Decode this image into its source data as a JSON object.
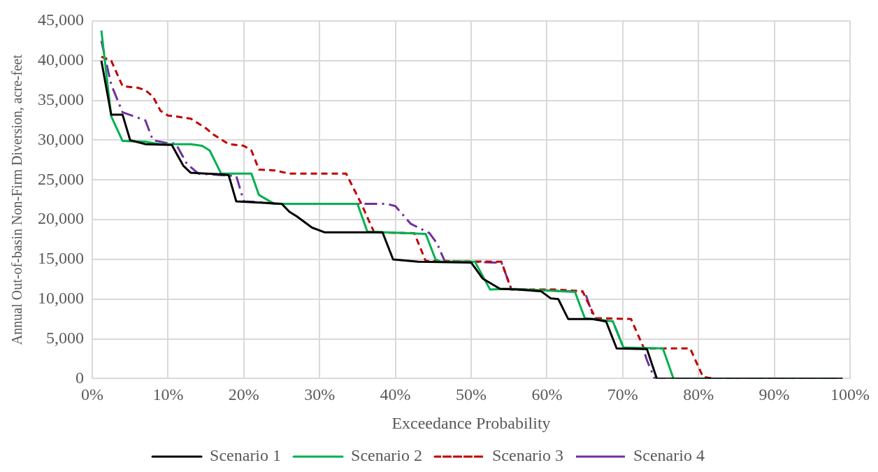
{
  "chart_data": {
    "type": "line",
    "xlabel": "Exceedance Probability",
    "ylabel": "Annual Out-of-basin Non-Firm Diversion, acre-feet",
    "xlim": [
      0,
      100
    ],
    "xticks": [
      {
        "value": 0,
        "label": "0%"
      },
      {
        "value": 10,
        "label": "10%"
      },
      {
        "value": 20,
        "label": "20%"
      },
      {
        "value": 30,
        "label": "30%"
      },
      {
        "value": 40,
        "label": "40%"
      },
      {
        "value": 50,
        "label": "50%"
      },
      {
        "value": 60,
        "label": "60%"
      },
      {
        "value": 70,
        "label": "70%"
      },
      {
        "value": 80,
        "label": "80%"
      },
      {
        "value": 90,
        "label": "90%"
      },
      {
        "value": 100,
        "label": "100%"
      }
    ],
    "ylim": [
      0,
      45000
    ],
    "yticks": [
      {
        "value": 0,
        "label": "0"
      },
      {
        "value": 5000,
        "label": "5,000"
      },
      {
        "value": 10000,
        "label": "10,000"
      },
      {
        "value": 15000,
        "label": "15,000"
      },
      {
        "value": 20000,
        "label": "20,000"
      },
      {
        "value": 25000,
        "label": "25,000"
      },
      {
        "value": 30000,
        "label": "30,000"
      },
      {
        "value": 35000,
        "label": "35,000"
      },
      {
        "value": 40000,
        "label": "40,000"
      },
      {
        "value": 45000,
        "label": "45,000"
      }
    ],
    "grid": true,
    "legend": "bottom",
    "marker": "none",
    "series": [
      {
        "name": "Scenario 1",
        "color": "#000000",
        "line_style": "solid",
        "x": [
          1.2,
          2.5,
          4,
          5,
          7,
          10.5,
          12,
          13,
          15,
          17,
          18,
          19,
          23,
          25,
          26,
          27,
          29,
          30.7,
          38.3,
          39.7,
          43,
          50,
          51.5,
          53.8,
          56,
          59.2,
          60.5,
          61.5,
          62.8,
          66,
          67.8,
          69.2,
          73.2,
          74.5,
          99
        ],
        "values": [
          40000,
          33200,
          33200,
          30000,
          29500,
          29400,
          26800,
          25900,
          25800,
          25700,
          25600,
          22300,
          22100,
          22000,
          21000,
          20400,
          19000,
          18400,
          18400,
          15000,
          14700,
          14600,
          12600,
          11300,
          11200,
          11000,
          10100,
          10000,
          7500,
          7500,
          7200,
          3800,
          3700,
          0,
          0
        ]
      },
      {
        "name": "Scenario 2",
        "color": "#00b050",
        "line_style": "solid",
        "x": [
          1.2,
          2.5,
          4,
          7,
          9,
          13,
          14.5,
          15.5,
          17,
          21,
          22,
          24,
          35,
          36.3,
          44,
          45.3,
          46,
          50.5,
          52.5,
          55,
          63.7,
          65,
          68.7,
          70.1,
          75.3,
          76.7,
          99
        ],
        "values": [
          43800,
          33000,
          29900,
          29800,
          29500,
          29500,
          29300,
          28700,
          25800,
          25800,
          23100,
          22000,
          22000,
          18500,
          18200,
          15000,
          14700,
          14700,
          11200,
          11300,
          10900,
          7600,
          7200,
          3900,
          3800,
          0,
          0
        ]
      },
      {
        "name": "Scenario 3",
        "color": "#c00000",
        "line_style": "dashed",
        "x": [
          1.2,
          2.5,
          4,
          6,
          7,
          8,
          9,
          10,
          11,
          13,
          15,
          16,
          18,
          20,
          21,
          22,
          24,
          26,
          33.5,
          35.5,
          37.2,
          42.5,
          44,
          54,
          55.3,
          61,
          64.7,
          66.4,
          71.1,
          72.8,
          78.9,
          80.6,
          82,
          99
        ],
        "values": [
          40500,
          40000,
          36800,
          36600,
          36300,
          35500,
          33700,
          33100,
          33000,
          32700,
          31500,
          30700,
          29500,
          29300,
          28700,
          26300,
          26200,
          25800,
          25800,
          22000,
          18400,
          18300,
          14800,
          14700,
          11200,
          11200,
          11000,
          7600,
          7500,
          3800,
          3800,
          200,
          0,
          0
        ]
      },
      {
        "name": "Scenario 4",
        "color": "#7030a0",
        "line_style": "dashdot",
        "x": [
          1.2,
          2.5,
          4,
          5.5,
          7,
          8,
          10,
          11,
          12.5,
          14,
          17,
          19,
          20,
          22,
          24,
          38.8,
          40,
          42,
          44.5,
          45.5,
          46.5,
          53,
          54,
          55.3,
          65,
          66.2,
          67.6,
          68.7,
          70.1,
          72.7,
          73.2,
          74.2,
          99
        ],
        "values": [
          42500,
          37000,
          33500,
          33000,
          32500,
          30000,
          29600,
          29600,
          27000,
          25800,
          25600,
          25500,
          22300,
          22200,
          22000,
          22000,
          21700,
          19500,
          18300,
          17000,
          14800,
          14600,
          14600,
          11300,
          10900,
          7600,
          7200,
          7200,
          3900,
          3800,
          2300,
          0,
          0
        ]
      }
    ]
  }
}
